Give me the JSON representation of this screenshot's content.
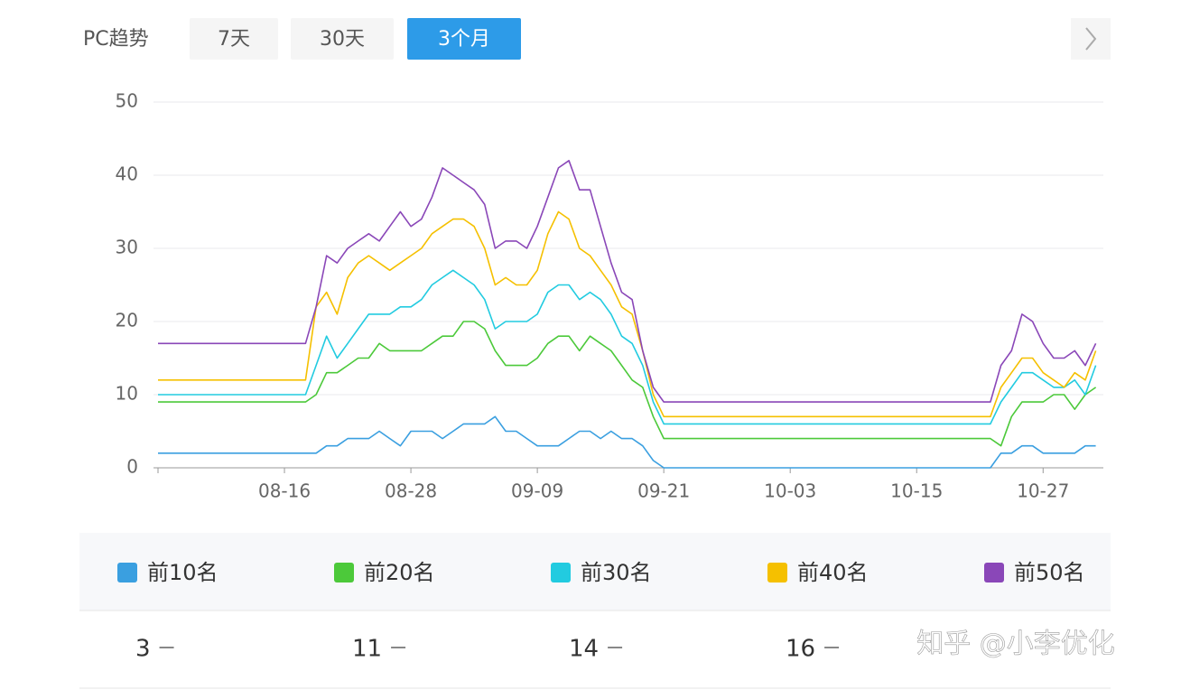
{
  "tabs": {
    "label": "PC趋势",
    "options": [
      "7天",
      "30天",
      "3个月"
    ],
    "active": 2
  },
  "chart_data": {
    "type": "line",
    "categories": [
      null,
      null,
      null,
      null,
      null,
      null,
      null,
      null,
      null,
      null,
      null,
      null,
      "08-16",
      null,
      null,
      null,
      null,
      null,
      null,
      null,
      null,
      null,
      null,
      null,
      "08-28",
      null,
      null,
      null,
      null,
      null,
      null,
      null,
      null,
      null,
      null,
      null,
      "09-09",
      null,
      null,
      null,
      null,
      null,
      null,
      null,
      null,
      null,
      null,
      null,
      "09-21",
      null,
      null,
      null,
      null,
      null,
      null,
      null,
      null,
      null,
      null,
      null,
      "10-03",
      null,
      null,
      null,
      null,
      null,
      null,
      null,
      null,
      null,
      null,
      null,
      "10-15",
      null,
      null,
      null,
      null,
      null,
      null,
      null,
      null,
      null,
      null,
      null,
      "10-27",
      null,
      null,
      null,
      null,
      null
    ],
    "ylim": [
      0,
      50
    ],
    "yticks": [
      0,
      10,
      20,
      30,
      40,
      50
    ],
    "grid": true,
    "series": [
      {
        "name": "前10名",
        "color": "#3a9fe0",
        "values": [
          2,
          2,
          2,
          2,
          2,
          2,
          2,
          2,
          2,
          2,
          2,
          2,
          2,
          2,
          2,
          2,
          3,
          3,
          4,
          4,
          4,
          5,
          4,
          3,
          5,
          5,
          5,
          4,
          5,
          6,
          6,
          6,
          7,
          5,
          5,
          4,
          3,
          3,
          3,
          4,
          5,
          5,
          4,
          5,
          4,
          4,
          3,
          1,
          0,
          0,
          0,
          0,
          0,
          0,
          0,
          0,
          0,
          0,
          0,
          0,
          0,
          0,
          0,
          0,
          0,
          0,
          0,
          0,
          0,
          0,
          0,
          0,
          0,
          0,
          0,
          0,
          0,
          0,
          0,
          0,
          2,
          2,
          3,
          3,
          2,
          2,
          2,
          2,
          3,
          3
        ]
      },
      {
        "name": "前20名",
        "color": "#4cc93a",
        "values": [
          9,
          9,
          9,
          9,
          9,
          9,
          9,
          9,
          9,
          9,
          9,
          9,
          9,
          9,
          9,
          10,
          13,
          13,
          14,
          15,
          15,
          17,
          16,
          16,
          16,
          16,
          17,
          18,
          18,
          20,
          20,
          19,
          16,
          14,
          14,
          14,
          15,
          17,
          18,
          18,
          16,
          18,
          17,
          16,
          14,
          12,
          11,
          7,
          4,
          4,
          4,
          4,
          4,
          4,
          4,
          4,
          4,
          4,
          4,
          4,
          4,
          4,
          4,
          4,
          4,
          4,
          4,
          4,
          4,
          4,
          4,
          4,
          4,
          4,
          4,
          4,
          4,
          4,
          4,
          4,
          3,
          7,
          9,
          9,
          9,
          10,
          10,
          8,
          10,
          11
        ]
      },
      {
        "name": "前30名",
        "color": "#22cbe0",
        "values": [
          10,
          10,
          10,
          10,
          10,
          10,
          10,
          10,
          10,
          10,
          10,
          10,
          10,
          10,
          10,
          14,
          18,
          15,
          17,
          19,
          21,
          21,
          21,
          22,
          22,
          23,
          25,
          26,
          27,
          26,
          25,
          23,
          19,
          20,
          20,
          20,
          21,
          24,
          25,
          25,
          23,
          24,
          23,
          21,
          18,
          17,
          14,
          9,
          6,
          6,
          6,
          6,
          6,
          6,
          6,
          6,
          6,
          6,
          6,
          6,
          6,
          6,
          6,
          6,
          6,
          6,
          6,
          6,
          6,
          6,
          6,
          6,
          6,
          6,
          6,
          6,
          6,
          6,
          6,
          6,
          9,
          11,
          13,
          13,
          12,
          11,
          11,
          12,
          10,
          14
        ]
      },
      {
        "name": "前40名",
        "color": "#f5c000",
        "values": [
          12,
          12,
          12,
          12,
          12,
          12,
          12,
          12,
          12,
          12,
          12,
          12,
          12,
          12,
          12,
          22,
          24,
          21,
          26,
          28,
          29,
          28,
          27,
          28,
          29,
          30,
          32,
          33,
          34,
          34,
          33,
          30,
          25,
          26,
          25,
          25,
          27,
          32,
          35,
          34,
          30,
          29,
          27,
          25,
          22,
          21,
          16,
          10,
          7,
          7,
          7,
          7,
          7,
          7,
          7,
          7,
          7,
          7,
          7,
          7,
          7,
          7,
          7,
          7,
          7,
          7,
          7,
          7,
          7,
          7,
          7,
          7,
          7,
          7,
          7,
          7,
          7,
          7,
          7,
          7,
          11,
          13,
          15,
          15,
          13,
          12,
          11,
          13,
          12,
          16
        ]
      },
      {
        "name": "前50名",
        "color": "#8a47b8",
        "values": [
          17,
          17,
          17,
          17,
          17,
          17,
          17,
          17,
          17,
          17,
          17,
          17,
          17,
          17,
          17,
          22,
          29,
          28,
          30,
          31,
          32,
          31,
          33,
          35,
          33,
          34,
          37,
          41,
          40,
          39,
          38,
          36,
          30,
          31,
          31,
          30,
          33,
          37,
          41,
          42,
          38,
          38,
          33,
          28,
          24,
          23,
          16,
          11,
          9,
          9,
          9,
          9,
          9,
          9,
          9,
          9,
          9,
          9,
          9,
          9,
          9,
          9,
          9,
          9,
          9,
          9,
          9,
          9,
          9,
          9,
          9,
          9,
          9,
          9,
          9,
          9,
          9,
          9,
          9,
          9,
          14,
          16,
          21,
          20,
          17,
          15,
          15,
          16,
          14,
          17
        ]
      }
    ]
  },
  "summary": [
    3,
    11,
    14,
    16
  ],
  "watermark": "知乎 @小李优化"
}
